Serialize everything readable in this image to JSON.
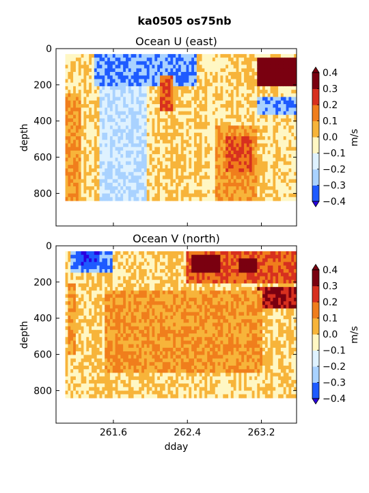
{
  "figure": {
    "title": "ka0505 os75nb"
  },
  "colorbar": {
    "unit": "m/s",
    "levels": [
      -0.4,
      -0.3,
      -0.2,
      -0.1,
      0.0,
      0.1,
      0.2,
      0.3,
      0.4
    ],
    "colors": [
      "#2a00e0",
      "#1e5bff",
      "#a9d2ff",
      "#dff2ff",
      "#fff7c4",
      "#f7b43a",
      "#f07e1c",
      "#d7301f",
      "#7a0010"
    ],
    "tick_labels": [
      "−0.4",
      "−0.3",
      "−0.2",
      "−0.1",
      "0.0",
      "0.1",
      "0.2",
      "0.3",
      "0.4"
    ]
  },
  "chart_data": [
    {
      "type": "heatmap",
      "title": "Ocean U (east)",
      "xlabel": "",
      "ylabel": "depth",
      "xlim": [
        260.98,
        263.58
      ],
      "ylim": [
        980,
        0
      ],
      "yticks": [
        0,
        200,
        400,
        600,
        800
      ],
      "xticks": [
        261.6,
        262.4,
        263.2
      ],
      "show_xtick_labels": false,
      "valid_x": [
        261.08,
        263.58
      ],
      "valid_depth": [
        30,
        840
      ],
      "features": [
        {
          "x": [
            261.55,
            262.25
          ],
          "depth": [
            30,
            130
          ],
          "value": -0.4
        },
        {
          "x": [
            261.4,
            262.5
          ],
          "depth": [
            30,
            200
          ],
          "value": -0.3
        },
        {
          "x": [
            261.45,
            261.95
          ],
          "depth": [
            200,
            850
          ],
          "value": -0.2
        },
        {
          "x": [
            263.15,
            263.58
          ],
          "depth": [
            40,
            200
          ],
          "value": 0.4
        },
        {
          "x": [
            263.15,
            263.58
          ],
          "depth": [
            260,
            360
          ],
          "value": -0.3
        },
        {
          "x": [
            262.7,
            263.15
          ],
          "depth": [
            420,
            840
          ],
          "value": 0.1
        },
        {
          "x": [
            262.8,
            263.1
          ],
          "depth": [
            480,
            680
          ],
          "value": 0.2
        },
        {
          "x": [
            262.1,
            262.25
          ],
          "depth": [
            150,
            350
          ],
          "value": 0.2
        },
        {
          "x": [
            261.08,
            261.25
          ],
          "depth": [
            250,
            850
          ],
          "value": 0.1
        }
      ]
    },
    {
      "type": "heatmap",
      "title": "Ocean V (north)",
      "xlabel": "dday",
      "ylabel": "depth",
      "xlim": [
        260.98,
        263.58
      ],
      "ylim": [
        980,
        0
      ],
      "yticks": [
        0,
        200,
        400,
        600,
        800
      ],
      "xticks": [
        261.6,
        262.4,
        263.2
      ],
      "xtick_labels": [
        "261.6",
        "262.4",
        "263.2"
      ],
      "show_xtick_labels": true,
      "valid_x": [
        261.08,
        263.58
      ],
      "valid_depth": [
        30,
        840
      ],
      "features": [
        {
          "x": [
            261.15,
            261.6
          ],
          "depth": [
            30,
            150
          ],
          "value": -0.3
        },
        {
          "x": [
            261.2,
            261.45
          ],
          "depth": [
            30,
            110
          ],
          "value": -0.4
        },
        {
          "x": [
            262.4,
            263.58
          ],
          "depth": [
            30,
            200
          ],
          "value": 0.2
        },
        {
          "x": [
            262.45,
            262.75
          ],
          "depth": [
            40,
            150
          ],
          "value": 0.4
        },
        {
          "x": [
            262.95,
            263.15
          ],
          "depth": [
            60,
            150
          ],
          "value": 0.4
        },
        {
          "x": [
            263.15,
            263.58
          ],
          "depth": [
            220,
            350
          ],
          "value": 0.3
        },
        {
          "x": [
            261.5,
            263.2
          ],
          "depth": [
            250,
            700
          ],
          "value": 0.1
        },
        {
          "x": [
            261.1,
            261.2
          ],
          "depth": [
            200,
            600
          ],
          "value": 0.1
        }
      ]
    }
  ]
}
